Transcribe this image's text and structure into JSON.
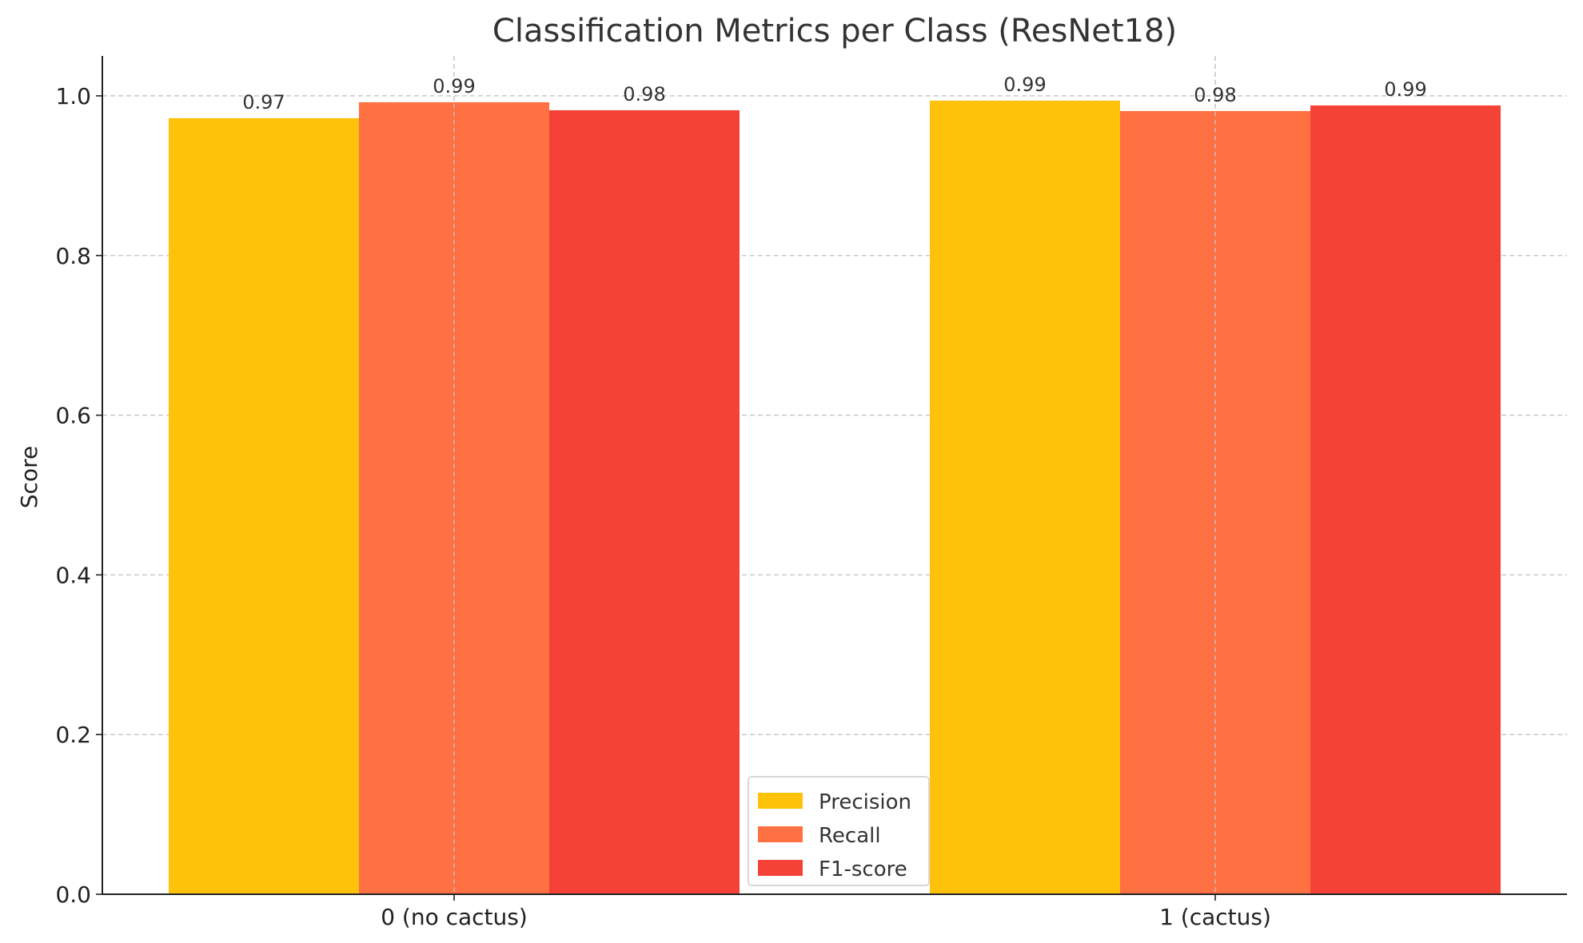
{
  "chart_data": {
    "type": "bar",
    "title": "Classification Metrics per Class (ResNet18)",
    "xlabel": "",
    "ylabel": "Score",
    "categories": [
      "0 (no cactus)",
      "1 (cactus)"
    ],
    "series": [
      {
        "name": "Precision",
        "color": "#FFC20A",
        "values": [
          0.972,
          0.994
        ],
        "labels": [
          "0.97",
          "0.99"
        ]
      },
      {
        "name": "Recall",
        "color": "#FF7043",
        "values": [
          0.992,
          0.981
        ],
        "labels": [
          "0.99",
          "0.98"
        ]
      },
      {
        "name": "F1-score",
        "color": "#F44336",
        "values": [
          0.982,
          0.988
        ],
        "labels": [
          "0.98",
          "0.99"
        ]
      }
    ],
    "ylim": [
      0,
      1.05
    ],
    "yticks": [
      0.0,
      0.2,
      0.4,
      0.6,
      0.8,
      1.0
    ],
    "ytick_labels": [
      "0.0",
      "0.2",
      "0.4",
      "0.6",
      "0.8",
      "1.0"
    ],
    "grid": true,
    "legend_position": "bottom-center"
  }
}
